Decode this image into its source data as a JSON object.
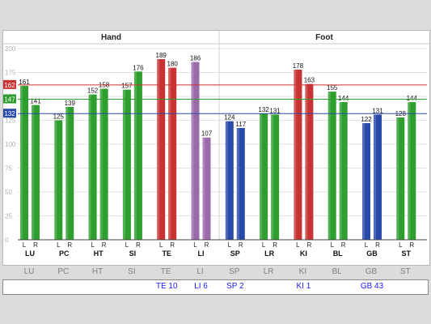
{
  "chart_data": {
    "type": "bar",
    "y_ticks": [
      "0",
      "25",
      "50",
      "75",
      "100",
      "125",
      "150",
      "175",
      "200"
    ],
    "ylim": [
      0,
      200
    ],
    "grid": "horizontal",
    "groups": [
      {
        "title": "Hand",
        "categories": [
          "LU",
          "PC",
          "HT",
          "SI",
          "TE",
          "LI"
        ]
      },
      {
        "title": "Foot",
        "categories": [
          "SP",
          "LR",
          "KI",
          "BL",
          "GB",
          "ST"
        ]
      }
    ],
    "side_labels": [
      "L",
      "R"
    ],
    "categories": [
      "LU",
      "PC",
      "HT",
      "SI",
      "TE",
      "LI",
      "SP",
      "LR",
      "KI",
      "BL",
      "GB",
      "ST"
    ],
    "bars": [
      {
        "category": "LU",
        "side": "L",
        "value": 161,
        "color": "#2e9e2e"
      },
      {
        "category": "LU",
        "side": "R",
        "value": 141,
        "color": "#2e9e2e"
      },
      {
        "category": "PC",
        "side": "L",
        "value": 125,
        "color": "#2e9e2e"
      },
      {
        "category": "PC",
        "side": "R",
        "value": 139,
        "color": "#2e9e2e"
      },
      {
        "category": "HT",
        "side": "L",
        "value": 152,
        "color": "#2e9e2e"
      },
      {
        "category": "HT",
        "side": "R",
        "value": 158,
        "color": "#2e9e2e"
      },
      {
        "category": "SI",
        "side": "L",
        "value": 157,
        "color": "#2e9e2e"
      },
      {
        "category": "SI",
        "side": "R",
        "value": 176,
        "color": "#2e9e2e"
      },
      {
        "category": "TE",
        "side": "L",
        "value": 189,
        "color": "#c83232"
      },
      {
        "category": "TE",
        "side": "R",
        "value": 180,
        "color": "#c83232"
      },
      {
        "category": "LI",
        "side": "L",
        "value": 186,
        "color": "#9a6aab"
      },
      {
        "category": "LI",
        "side": "R",
        "value": 107,
        "color": "#9a6aab"
      },
      {
        "category": "SP",
        "side": "L",
        "value": 124,
        "color": "#2a4aaa"
      },
      {
        "category": "SP",
        "side": "R",
        "value": 117,
        "color": "#2a4aaa"
      },
      {
        "category": "LR",
        "side": "L",
        "value": 132,
        "color": "#2e9e2e"
      },
      {
        "category": "LR",
        "side": "R",
        "value": 131,
        "color": "#2e9e2e"
      },
      {
        "category": "KI",
        "side": "L",
        "value": 178,
        "color": "#c83232"
      },
      {
        "category": "KI",
        "side": "R",
        "value": 163,
        "color": "#c83232"
      },
      {
        "category": "BL",
        "side": "L",
        "value": 155,
        "color": "#2e9e2e"
      },
      {
        "category": "BL",
        "side": "R",
        "value": 144,
        "color": "#2e9e2e"
      },
      {
        "category": "GB",
        "side": "L",
        "value": 122,
        "color": "#2a4aaa"
      },
      {
        "category": "GB",
        "side": "R",
        "value": 131,
        "color": "#2a4aaa"
      },
      {
        "category": "ST",
        "side": "L",
        "value": 128,
        "color": "#2e9e2e"
      },
      {
        "category": "ST",
        "side": "R",
        "value": 144,
        "color": "#2e9e2e"
      }
    ],
    "reference_lines": [
      {
        "value": 162,
        "label": "162",
        "color": "#c83232"
      },
      {
        "value": 147,
        "label": "147",
        "color": "#2e9e2e"
      },
      {
        "value": 132,
        "label": "132",
        "color": "#2a4aaa"
      }
    ]
  },
  "colors": {
    "green": "#2e9e2e",
    "red": "#c83232",
    "blue": "#2a4aaa",
    "purple": "#9a6aab"
  },
  "bottom_row_labels": [
    "LU",
    "PC",
    "HT",
    "SI",
    "TE",
    "LI",
    "SP",
    "LR",
    "KI",
    "BL",
    "GB",
    "ST"
  ],
  "point_labels": [
    {
      "category": "TE",
      "text": "TE 10"
    },
    {
      "category": "LI",
      "text": "LI 6"
    },
    {
      "category": "SP",
      "text": "SP 2"
    },
    {
      "category": "KI",
      "text": "KI 1"
    },
    {
      "category": "GB",
      "text": "GB 43"
    }
  ]
}
